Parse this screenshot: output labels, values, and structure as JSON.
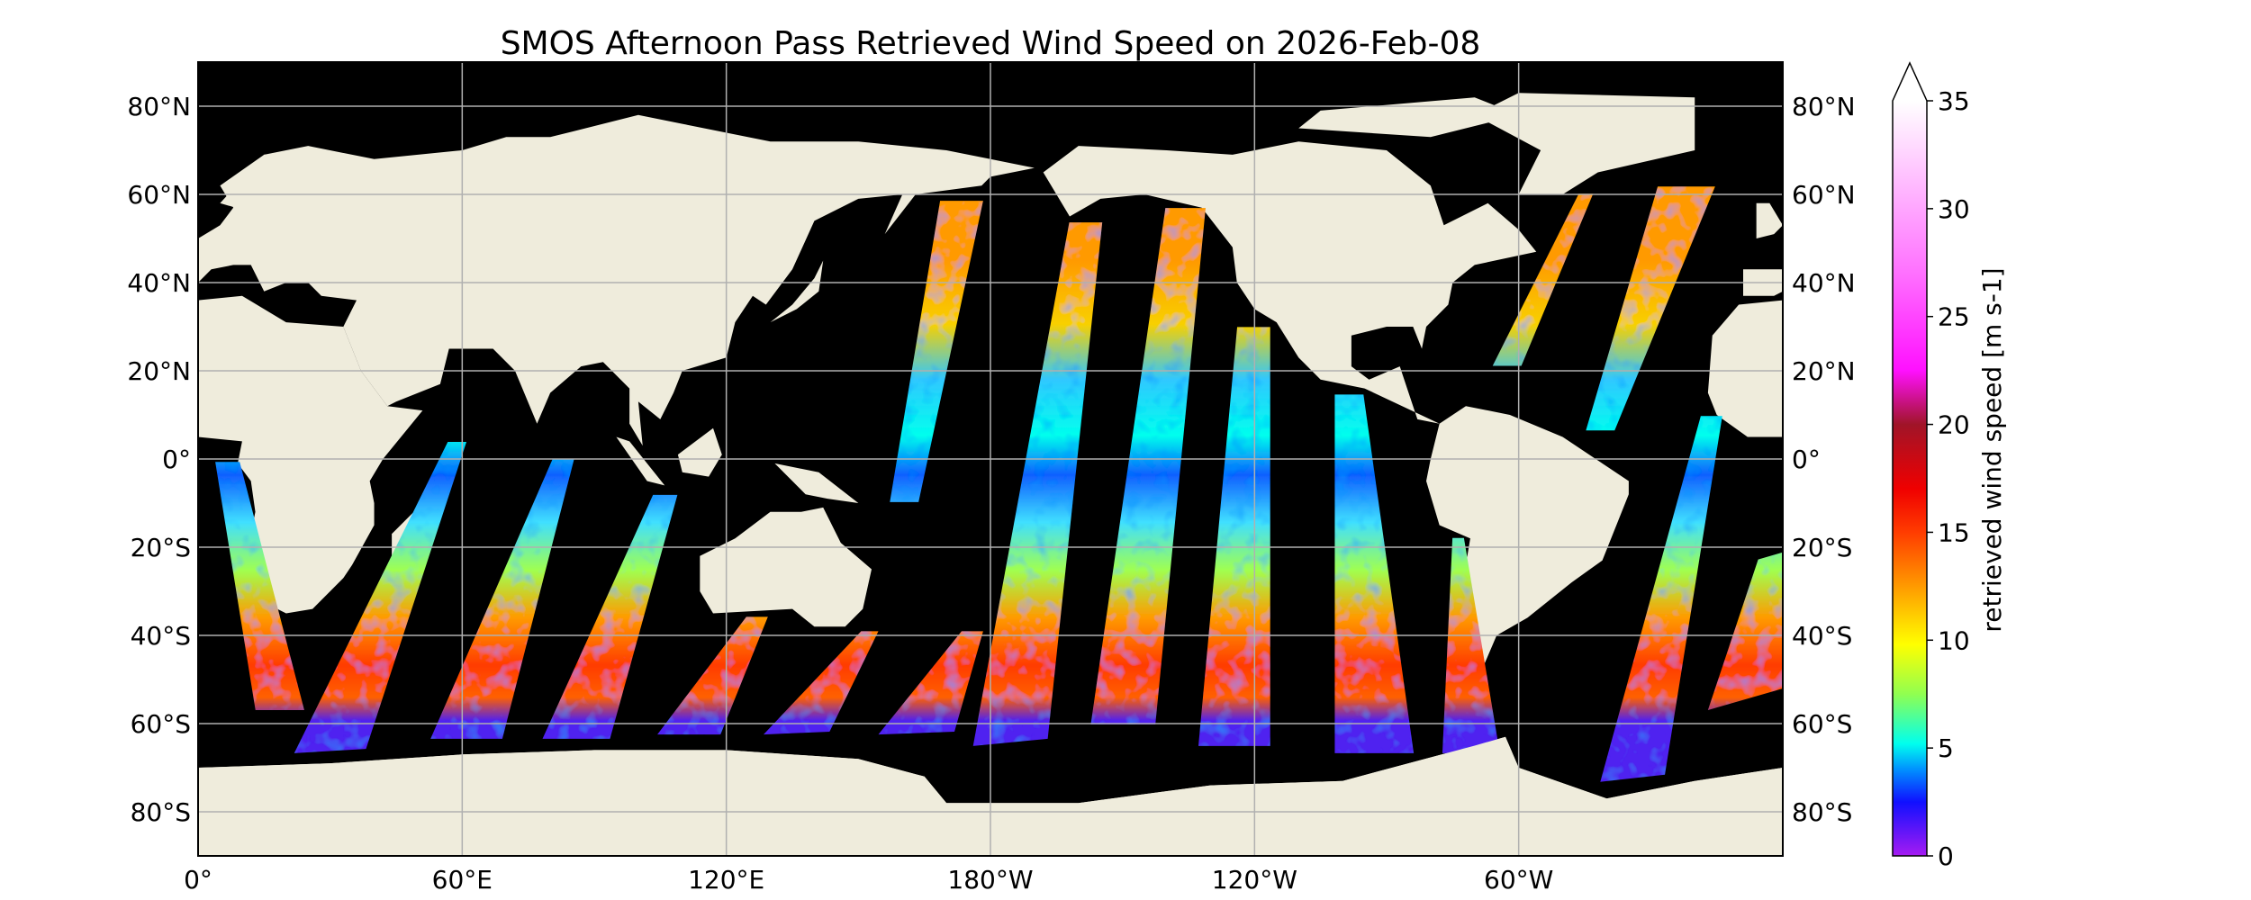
{
  "chart_data": {
    "type": "heatmap",
    "title": "SMOS Afternoon Pass Retrieved Wind Speed on 2026-Feb-08",
    "map": {
      "projection": "plate carree, 0° to 360° longitude",
      "land_color": "#efecdc",
      "no_data_color": "#000000",
      "grid": true,
      "lon_ticks": [
        0,
        60,
        120,
        180,
        240,
        300
      ],
      "lon_tick_labels": [
        "0°",
        "60°E",
        "120°E",
        "180°W",
        "120°W",
        "60°W"
      ],
      "lat_ticks": [
        80,
        60,
        40,
        20,
        0,
        -20,
        -40,
        -60,
        -80
      ],
      "lat_tick_labels": [
        "80°N",
        "60°N",
        "40°N",
        "20°N",
        "0°",
        "20°S",
        "40°S",
        "60°S",
        "80°S"
      ],
      "xlim": [
        0,
        360
      ],
      "ylim": [
        -90,
        90
      ]
    },
    "colorbar": {
      "label": "retrieved wind speed [m s-1]",
      "range": [
        0,
        35
      ],
      "extend": "max",
      "ticks": [
        0,
        5,
        10,
        15,
        20,
        25,
        30,
        35
      ],
      "tick_labels": [
        "0",
        "5",
        "10",
        "15",
        "20",
        "25",
        "30",
        "35"
      ],
      "colors": [
        {
          "value": 0,
          "color": "#a61bf2"
        },
        {
          "value": 2.5,
          "color": "#1010ff"
        },
        {
          "value": 4,
          "color": "#0090ff"
        },
        {
          "value": 5.2,
          "color": "#00ffee"
        },
        {
          "value": 7.5,
          "color": "#90ff50"
        },
        {
          "value": 9.8,
          "color": "#ffff00"
        },
        {
          "value": 12.5,
          "color": "#ff9a00"
        },
        {
          "value": 15,
          "color": "#ff3c00"
        },
        {
          "value": 17,
          "color": "#f00000"
        },
        {
          "value": 20,
          "color": "#a01428"
        },
        {
          "value": 22.5,
          "color": "#ff10ff"
        },
        {
          "value": 27,
          "color": "#ff70ff"
        },
        {
          "value": 31,
          "color": "#ffb8ff"
        },
        {
          "value": 35,
          "color": "#ffffff"
        }
      ]
    }
  }
}
